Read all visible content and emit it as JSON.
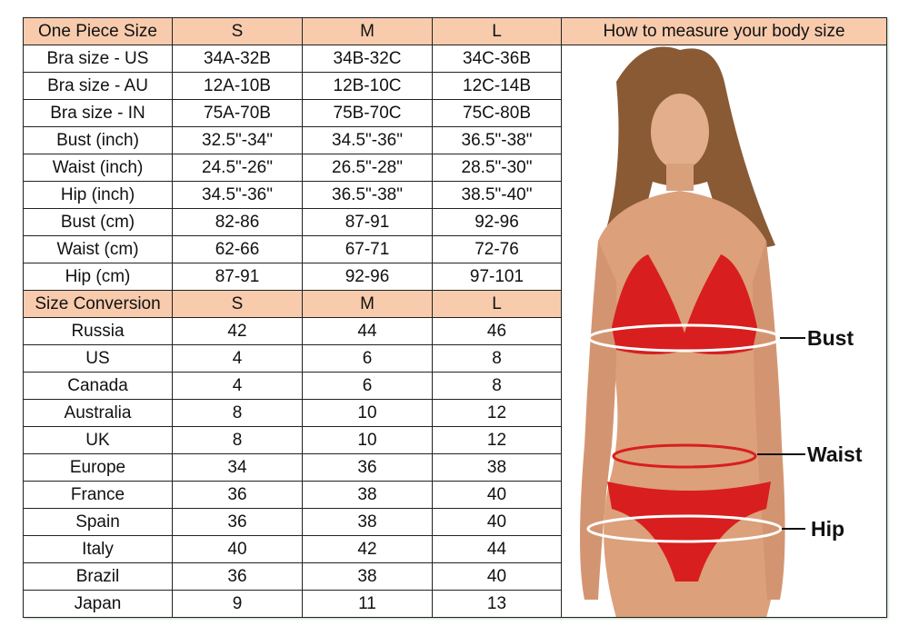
{
  "header": {
    "title": "One Piece Size",
    "sizes": [
      "S",
      "M",
      "L"
    ],
    "measure_title": "How to measure your body size"
  },
  "measurements": [
    {
      "label": "Bra size - US",
      "values": [
        "34A-32B",
        "34B-32C",
        "34C-36B"
      ]
    },
    {
      "label": "Bra size - AU",
      "values": [
        "12A-10B",
        "12B-10C",
        "12C-14B"
      ]
    },
    {
      "label": "Bra size - IN",
      "values": [
        "75A-70B",
        "75B-70C",
        "75C-80B"
      ]
    },
    {
      "label": "Bust (inch)",
      "values": [
        "32.5\"-34\"",
        "34.5\"-36\"",
        "36.5\"-38\""
      ]
    },
    {
      "label": "Waist (inch)",
      "values": [
        "24.5\"-26\"",
        "26.5\"-28\"",
        "28.5\"-30\""
      ]
    },
    {
      "label": "Hip (inch)",
      "values": [
        "34.5\"-36\"",
        "36.5\"-38\"",
        "38.5\"-40\""
      ]
    },
    {
      "label": "Bust (cm)",
      "values": [
        "82-86",
        "87-91",
        "92-96"
      ]
    },
    {
      "label": "Waist (cm)",
      "values": [
        "62-66",
        "67-71",
        "72-76"
      ]
    },
    {
      "label": "Hip (cm)",
      "values": [
        "87-91",
        "92-96",
        "97-101"
      ]
    }
  ],
  "conversion_header": {
    "title": "Size Conversion",
    "sizes": [
      "S",
      "M",
      "L"
    ]
  },
  "conversion": [
    {
      "label": "Russia",
      "values": [
        "42",
        "44",
        "46"
      ]
    },
    {
      "label": "US",
      "values": [
        "4",
        "6",
        "8"
      ]
    },
    {
      "label": "Canada",
      "values": [
        "4",
        "6",
        "8"
      ]
    },
    {
      "label": "Australia",
      "values": [
        "8",
        "10",
        "12"
      ]
    },
    {
      "label": "UK",
      "values": [
        "8",
        "10",
        "12"
      ]
    },
    {
      "label": "Europe",
      "values": [
        "34",
        "36",
        "38"
      ]
    },
    {
      "label": "France",
      "values": [
        "36",
        "38",
        "40"
      ]
    },
    {
      "label": "Spain",
      "values": [
        "36",
        "38",
        "40"
      ]
    },
    {
      "label": "Italy",
      "values": [
        "40",
        "42",
        "44"
      ]
    },
    {
      "label": "Brazil",
      "values": [
        "36",
        "38",
        "40"
      ]
    },
    {
      "label": "Japan",
      "values": [
        "9",
        "11",
        "13"
      ]
    }
  ],
  "figure": {
    "labels": {
      "bust": "Bust",
      "waist": "Waist",
      "hip": "Hip"
    }
  },
  "colors": {
    "header_bg": "#f8cbad",
    "bikini": "#d81e1e",
    "border": "#222222"
  }
}
